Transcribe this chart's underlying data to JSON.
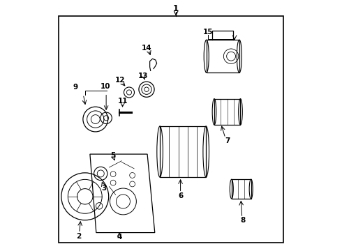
{
  "bg_color": "#ffffff",
  "line_color": "#000000",
  "text_color": "#000000",
  "figsize": [
    4.9,
    3.6
  ],
  "dpi": 100,
  "label_fontsize": 7.5,
  "title_fontsize": 8.5
}
